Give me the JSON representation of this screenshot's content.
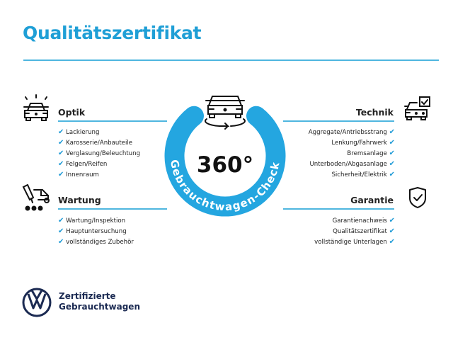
{
  "title": "Qualitätszertifikat",
  "check_icon": "checkmark-icon",
  "accent_color": "#1f9fd6",
  "badge": {
    "value": "360°",
    "label": "Gebrauchtwagen-Check"
  },
  "sections": {
    "optik": {
      "heading": "Optik",
      "items": [
        "Lackierung",
        "Karosserie/Anbauteile",
        "Verglasung/Beleuchtung",
        "Felgen/Reifen",
        "Innenraum"
      ]
    },
    "wartung": {
      "heading": "Wartung",
      "items": [
        "Wartung/Inspektion",
        "Hauptuntersuchung",
        "vollständiges Zubehör"
      ]
    },
    "technik": {
      "heading": "Technik",
      "items": [
        "Aggregate/Antriebsstrang",
        "Lenkung/Fahrwerk",
        "Bremsanlage",
        "Unterboden/Abgasanlage",
        "Sicherheit/Elektrik"
      ]
    },
    "garantie": {
      "heading": "Garantie",
      "items": [
        "Garantienachweis",
        "Qualitätszertifikat",
        "vollständige Unterlagen"
      ]
    }
  },
  "footer": {
    "line1": "Zertifizierte",
    "line2": "Gebrauchtwagen"
  }
}
